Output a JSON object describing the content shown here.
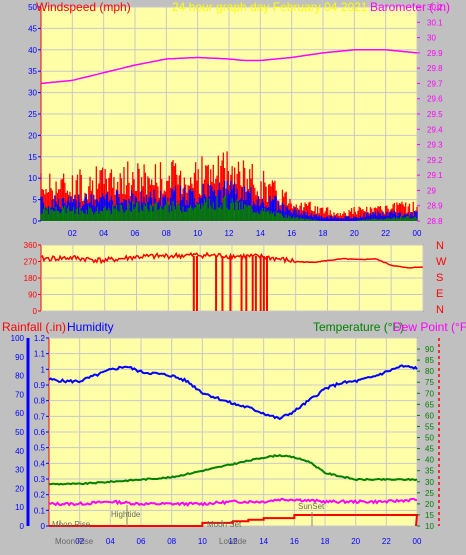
{
  "colors": {
    "background": "#c0c0c0",
    "plot_bg": "#ffffa8",
    "frame": "#ff0000",
    "wind_gust": "#ff0000",
    "wind_avg": "#0000ff",
    "wind_low": "#008000",
    "barometer": "#ff00ff",
    "direction": "#ff0000",
    "humidity": "#0000ff",
    "temperature": "#008000",
    "dew_point": "#ff00ff",
    "rain": "#ff0000",
    "title": "#ffff00",
    "grid": "#c8c8c8",
    "axis_blue": "#0000ff",
    "axis_green": "#008000",
    "axis_red": "#ff0000",
    "astro": "#808080"
  },
  "header": {
    "windspeed_label": "Windspeed (mph)",
    "title": "24 hour graph day   February 04 2021",
    "barometer_label": "Barometer (.in)"
  },
  "bottom_header": {
    "rain_label": "Rainfall (.in)",
    "humidity_label": "Humidity",
    "temperature_label": "Temperature (°F)",
    "dewpoint_label": "Dew Point (°F)"
  },
  "compass": [
    "N",
    "W",
    "S",
    "E",
    "N"
  ],
  "astro_labels": {
    "moon_rise": "Moon Rise",
    "moon_rise_bottom": "Moon Rise",
    "hightide": "Hightide",
    "moon_set": "Moon Set",
    "lowtide": "Lowtide",
    "sunset": "SunSet"
  },
  "chart_data": [
    {
      "type": "line",
      "name": "wind-and-barometer",
      "x_ticks": [
        "02",
        "04",
        "06",
        "08",
        "10",
        "12",
        "14",
        "16",
        "18",
        "20",
        "22",
        "00"
      ],
      "x_range": [
        0,
        24
      ],
      "left_axis": {
        "label": "Windspeed (mph)",
        "range": [
          0,
          50
        ],
        "ticks": [
          0,
          5,
          10,
          15,
          20,
          25,
          30,
          35,
          40,
          45,
          50
        ]
      },
      "right_axis": {
        "label": "Barometer (.in)",
        "range": [
          28.8,
          30.2
        ],
        "ticks": [
          "28.8",
          "28.9",
          "29",
          "29.1",
          "29.2",
          "29.3",
          "29.4",
          "29.5",
          "29.6",
          "29.7",
          "29.8",
          "29.9",
          "30",
          "30.1",
          "30.2"
        ]
      },
      "barometer": {
        "x": [
          0,
          2,
          4,
          6,
          8,
          10,
          12,
          13,
          14,
          15,
          16,
          18,
          20,
          21,
          22,
          23,
          24
        ],
        "y": [
          29.7,
          29.72,
          29.77,
          29.82,
          29.86,
          29.87,
          29.86,
          29.85,
          29.85,
          29.86,
          29.87,
          29.9,
          29.92,
          29.92,
          29.92,
          29.91,
          29.9
        ]
      },
      "wind_gust_envelope": {
        "x": [
          0,
          2,
          4,
          6,
          8,
          10,
          11,
          12,
          13,
          14,
          15,
          16,
          17,
          18,
          19,
          20,
          21,
          22,
          23,
          24
        ],
        "y": [
          10,
          10,
          11,
          12,
          12,
          13,
          13,
          14,
          12,
          11,
          8,
          6,
          4,
          3,
          2,
          3,
          3,
          3,
          4,
          4
        ]
      },
      "wind_avg_envelope": {
        "x": [
          0,
          2,
          4,
          6,
          8,
          10,
          11,
          12,
          13,
          14,
          15,
          16,
          17,
          18,
          19,
          20,
          21,
          22,
          23,
          24
        ],
        "y": [
          5,
          5,
          6,
          6,
          7,
          7,
          8,
          8,
          7,
          6,
          5,
          3,
          2,
          1,
          1,
          1,
          2,
          2,
          2,
          2
        ]
      },
      "wind_low_envelope": {
        "x": [
          0,
          2,
          4,
          6,
          8,
          10,
          11,
          12,
          13,
          14,
          15,
          16,
          17,
          18,
          19,
          20,
          21,
          22,
          23,
          24
        ],
        "y": [
          3,
          3,
          3,
          4,
          4,
          4,
          5,
          5,
          4,
          3,
          2,
          1,
          0.5,
          0,
          0,
          0,
          0.5,
          0.5,
          1,
          1
        ]
      }
    },
    {
      "type": "line",
      "name": "wind-direction",
      "x_range": [
        0,
        24
      ],
      "y_range": [
        0,
        360
      ],
      "y_ticks": [
        0,
        90,
        180,
        270,
        360
      ],
      "direction": {
        "x": [
          0,
          2,
          4,
          6,
          8,
          10,
          12,
          14,
          16,
          17,
          18,
          19,
          20,
          21,
          22,
          23,
          24
        ],
        "y": [
          285,
          290,
          275,
          295,
          300,
          305,
          300,
          295,
          270,
          265,
          275,
          285,
          280,
          285,
          250,
          235,
          240
        ]
      },
      "direction_spikes_x": [
        9.6,
        9.8,
        11.0,
        11.4,
        11.9,
        12.6,
        12.9,
        13.3,
        13.5,
        13.8,
        14.0,
        14.2
      ]
    },
    {
      "type": "line",
      "name": "humidity-temperature-rain",
      "x_range": [
        0,
        24
      ],
      "left_axis_rain": {
        "label": "Rainfall (.in)",
        "range": [
          0,
          1.2
        ],
        "ticks": [
          "0",
          "0.1",
          "0.2",
          "0.3",
          "0.4",
          "0.5",
          "0.6",
          "0.7",
          "0.8",
          "0.9",
          "1",
          "1.1",
          "1.2"
        ]
      },
      "left_axis_humidity": {
        "label": "Humidity",
        "range": [
          0,
          100
        ],
        "ticks": [
          0,
          10,
          20,
          30,
          40,
          50,
          60,
          70,
          80,
          90,
          100
        ]
      },
      "right_axis": {
        "label": "Temperature (°F)",
        "range": [
          10,
          95
        ],
        "ticks": [
          10,
          15,
          20,
          25,
          30,
          35,
          40,
          45,
          50,
          55,
          60,
          65,
          70,
          75,
          80,
          85,
          90
        ]
      },
      "humidity": {
        "x": [
          0,
          1,
          2,
          3,
          4,
          5,
          6,
          7,
          8,
          9,
          10,
          11,
          12,
          13,
          14,
          15,
          16,
          17,
          18,
          19,
          20,
          21,
          22,
          23,
          24
        ],
        "y": [
          78,
          77,
          77,
          80,
          83,
          85,
          82,
          81,
          80,
          77,
          71,
          68,
          65,
          63,
          60,
          57,
          61,
          67,
          73,
          76,
          77,
          79,
          82,
          85,
          84
        ]
      },
      "temperature": {
        "x": [
          0,
          2,
          4,
          6,
          8,
          10,
          12,
          14,
          15,
          16,
          17,
          18,
          20,
          22,
          24
        ],
        "y": [
          29,
          29,
          30,
          31,
          32,
          35,
          38,
          41,
          42,
          41,
          39,
          34,
          31,
          31,
          31
        ]
      },
      "dew_point": {
        "x": [
          0,
          2,
          4,
          6,
          8,
          10,
          12,
          14,
          15,
          16,
          18,
          20,
          22,
          24
        ],
        "y": [
          20,
          20,
          21,
          20,
          20,
          20,
          21,
          21,
          22,
          22,
          21,
          21,
          21,
          22
        ]
      },
      "rain": {
        "x": [
          0,
          7,
          10,
          12,
          13,
          14,
          16,
          18,
          20,
          24
        ],
        "y": [
          0,
          0,
          0.02,
          0.03,
          0.04,
          0.05,
          0.07,
          0.07,
          0.07,
          0.07
        ]
      }
    }
  ]
}
